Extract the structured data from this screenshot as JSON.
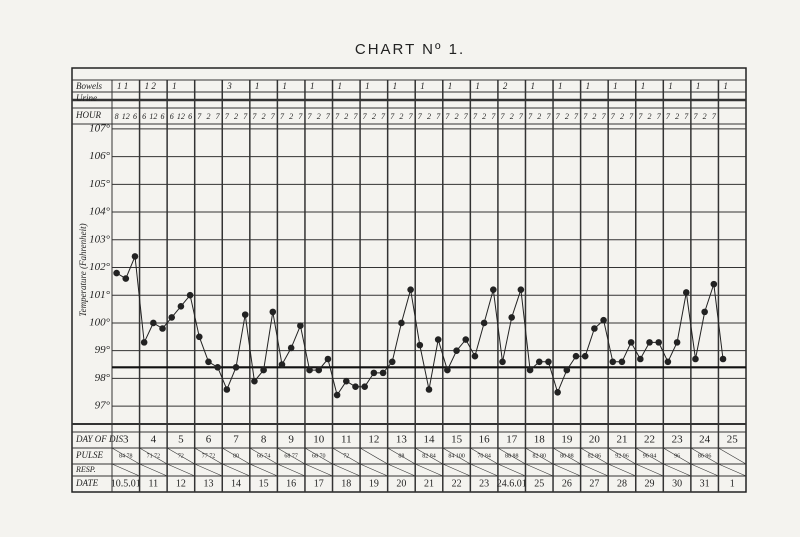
{
  "chart_data": {
    "type": "line",
    "title": "CHART Nº 1.",
    "y_label": "Temperature (Fahrenheit)",
    "row_labels": {
      "bowels": "Bowels",
      "urine": "Urine",
      "hour": "HOUR",
      "day": "DAY OF DIS",
      "pulse": "PULSE",
      "resp": "RESP.",
      "date": "DATE"
    },
    "days": [
      "3",
      "4",
      "5",
      "6",
      "7",
      "8",
      "9",
      "10",
      "11",
      "12",
      "13",
      "14",
      "15",
      "16",
      "17",
      "18",
      "19",
      "20",
      "21",
      "22",
      "23",
      "24",
      "25"
    ],
    "bowels": [
      "1 1",
      "1 2",
      "1",
      null,
      "3",
      "1",
      "1",
      "1",
      "1",
      "1",
      "1",
      "1",
      "1",
      "1",
      "2",
      "1",
      "1",
      "1",
      "1",
      "1",
      "1",
      "1",
      "1"
    ],
    "pulse": [
      "84 78",
      "71 72",
      "72",
      "77 72",
      "80",
      "66 74",
      "68 77",
      "68 70",
      "72",
      null,
      "88",
      "82 84",
      "84 100",
      "70 84",
      "88 88",
      "82 80",
      "80 88",
      "82 86",
      "92 96",
      "96 94",
      "96",
      "86 96",
      null
    ],
    "dates": [
      "10.5.01",
      "11",
      "12",
      "13",
      "14",
      "15",
      "16",
      "17",
      "18",
      "19",
      "20",
      "21",
      "22",
      "23",
      "24.6.01",
      "25",
      "26",
      "27",
      "28",
      "29",
      "30",
      "31",
      "1"
    ],
    "categories": [
      "8",
      "12",
      "6",
      "6",
      "12",
      "6",
      "6",
      "12",
      "6",
      "7",
      "2",
      "7",
      "7",
      "2",
      "7",
      "7",
      "2",
      "7",
      "7",
      "2",
      "7",
      "7",
      "2",
      "7",
      "7",
      "2",
      "7",
      "7",
      "2",
      "7",
      "7",
      "2",
      "7",
      "7",
      "2",
      "7",
      "7",
      "2",
      "7",
      "7",
      "2",
      "7",
      "7",
      "2",
      "7",
      "7",
      "2",
      "7",
      "7",
      "2",
      "7",
      "7",
      "2",
      "7",
      "7",
      "2",
      "7",
      "7",
      "2",
      "7",
      "7",
      "2",
      "7",
      "7",
      "2",
      "7",
      null,
      null,
      null
    ],
    "series": [
      {
        "name": "Temperature",
        "color": "#222222",
        "values": [
          101.8,
          101.6,
          102.4,
          99.3,
          100.0,
          99.8,
          100.2,
          100.6,
          101.0,
          99.5,
          98.6,
          98.4,
          97.6,
          98.4,
          100.3,
          97.9,
          98.3,
          100.4,
          98.5,
          99.1,
          99.9,
          98.3,
          98.3,
          98.7,
          97.4,
          97.9,
          97.7,
          97.7,
          98.2,
          98.2,
          98.6,
          100.0,
          101.2,
          99.2,
          97.6,
          99.4,
          98.3,
          99.0,
          99.4,
          98.8,
          100.0,
          101.2,
          98.6,
          100.2,
          101.2,
          98.3,
          98.6,
          98.6,
          97.5,
          98.3,
          98.8,
          98.8,
          99.8,
          100.1,
          98.6,
          98.6,
          99.3,
          98.7,
          99.3,
          99.3,
          98.6,
          99.3,
          101.1,
          98.7,
          100.4,
          101.4,
          98.7,
          null,
          null
        ]
      }
    ],
    "normal_line": 98.4,
    "ylim": [
      96.5,
      107.5
    ],
    "yticks": [
      {
        "value": 97,
        "label": "97°"
      },
      {
        "value": 98,
        "label": "98°"
      },
      {
        "value": 99,
        "label": "99°"
      },
      {
        "value": 100,
        "label": "100°"
      },
      {
        "value": 101,
        "label": "101°"
      },
      {
        "value": 102,
        "label": "102°"
      },
      {
        "value": 103,
        "label": "103°"
      },
      {
        "value": 104,
        "label": "104°"
      },
      {
        "value": 105,
        "label": "105°"
      },
      {
        "value": 106,
        "label": "106°"
      },
      {
        "value": 107,
        "label": "107°"
      }
    ],
    "grid": true
  }
}
